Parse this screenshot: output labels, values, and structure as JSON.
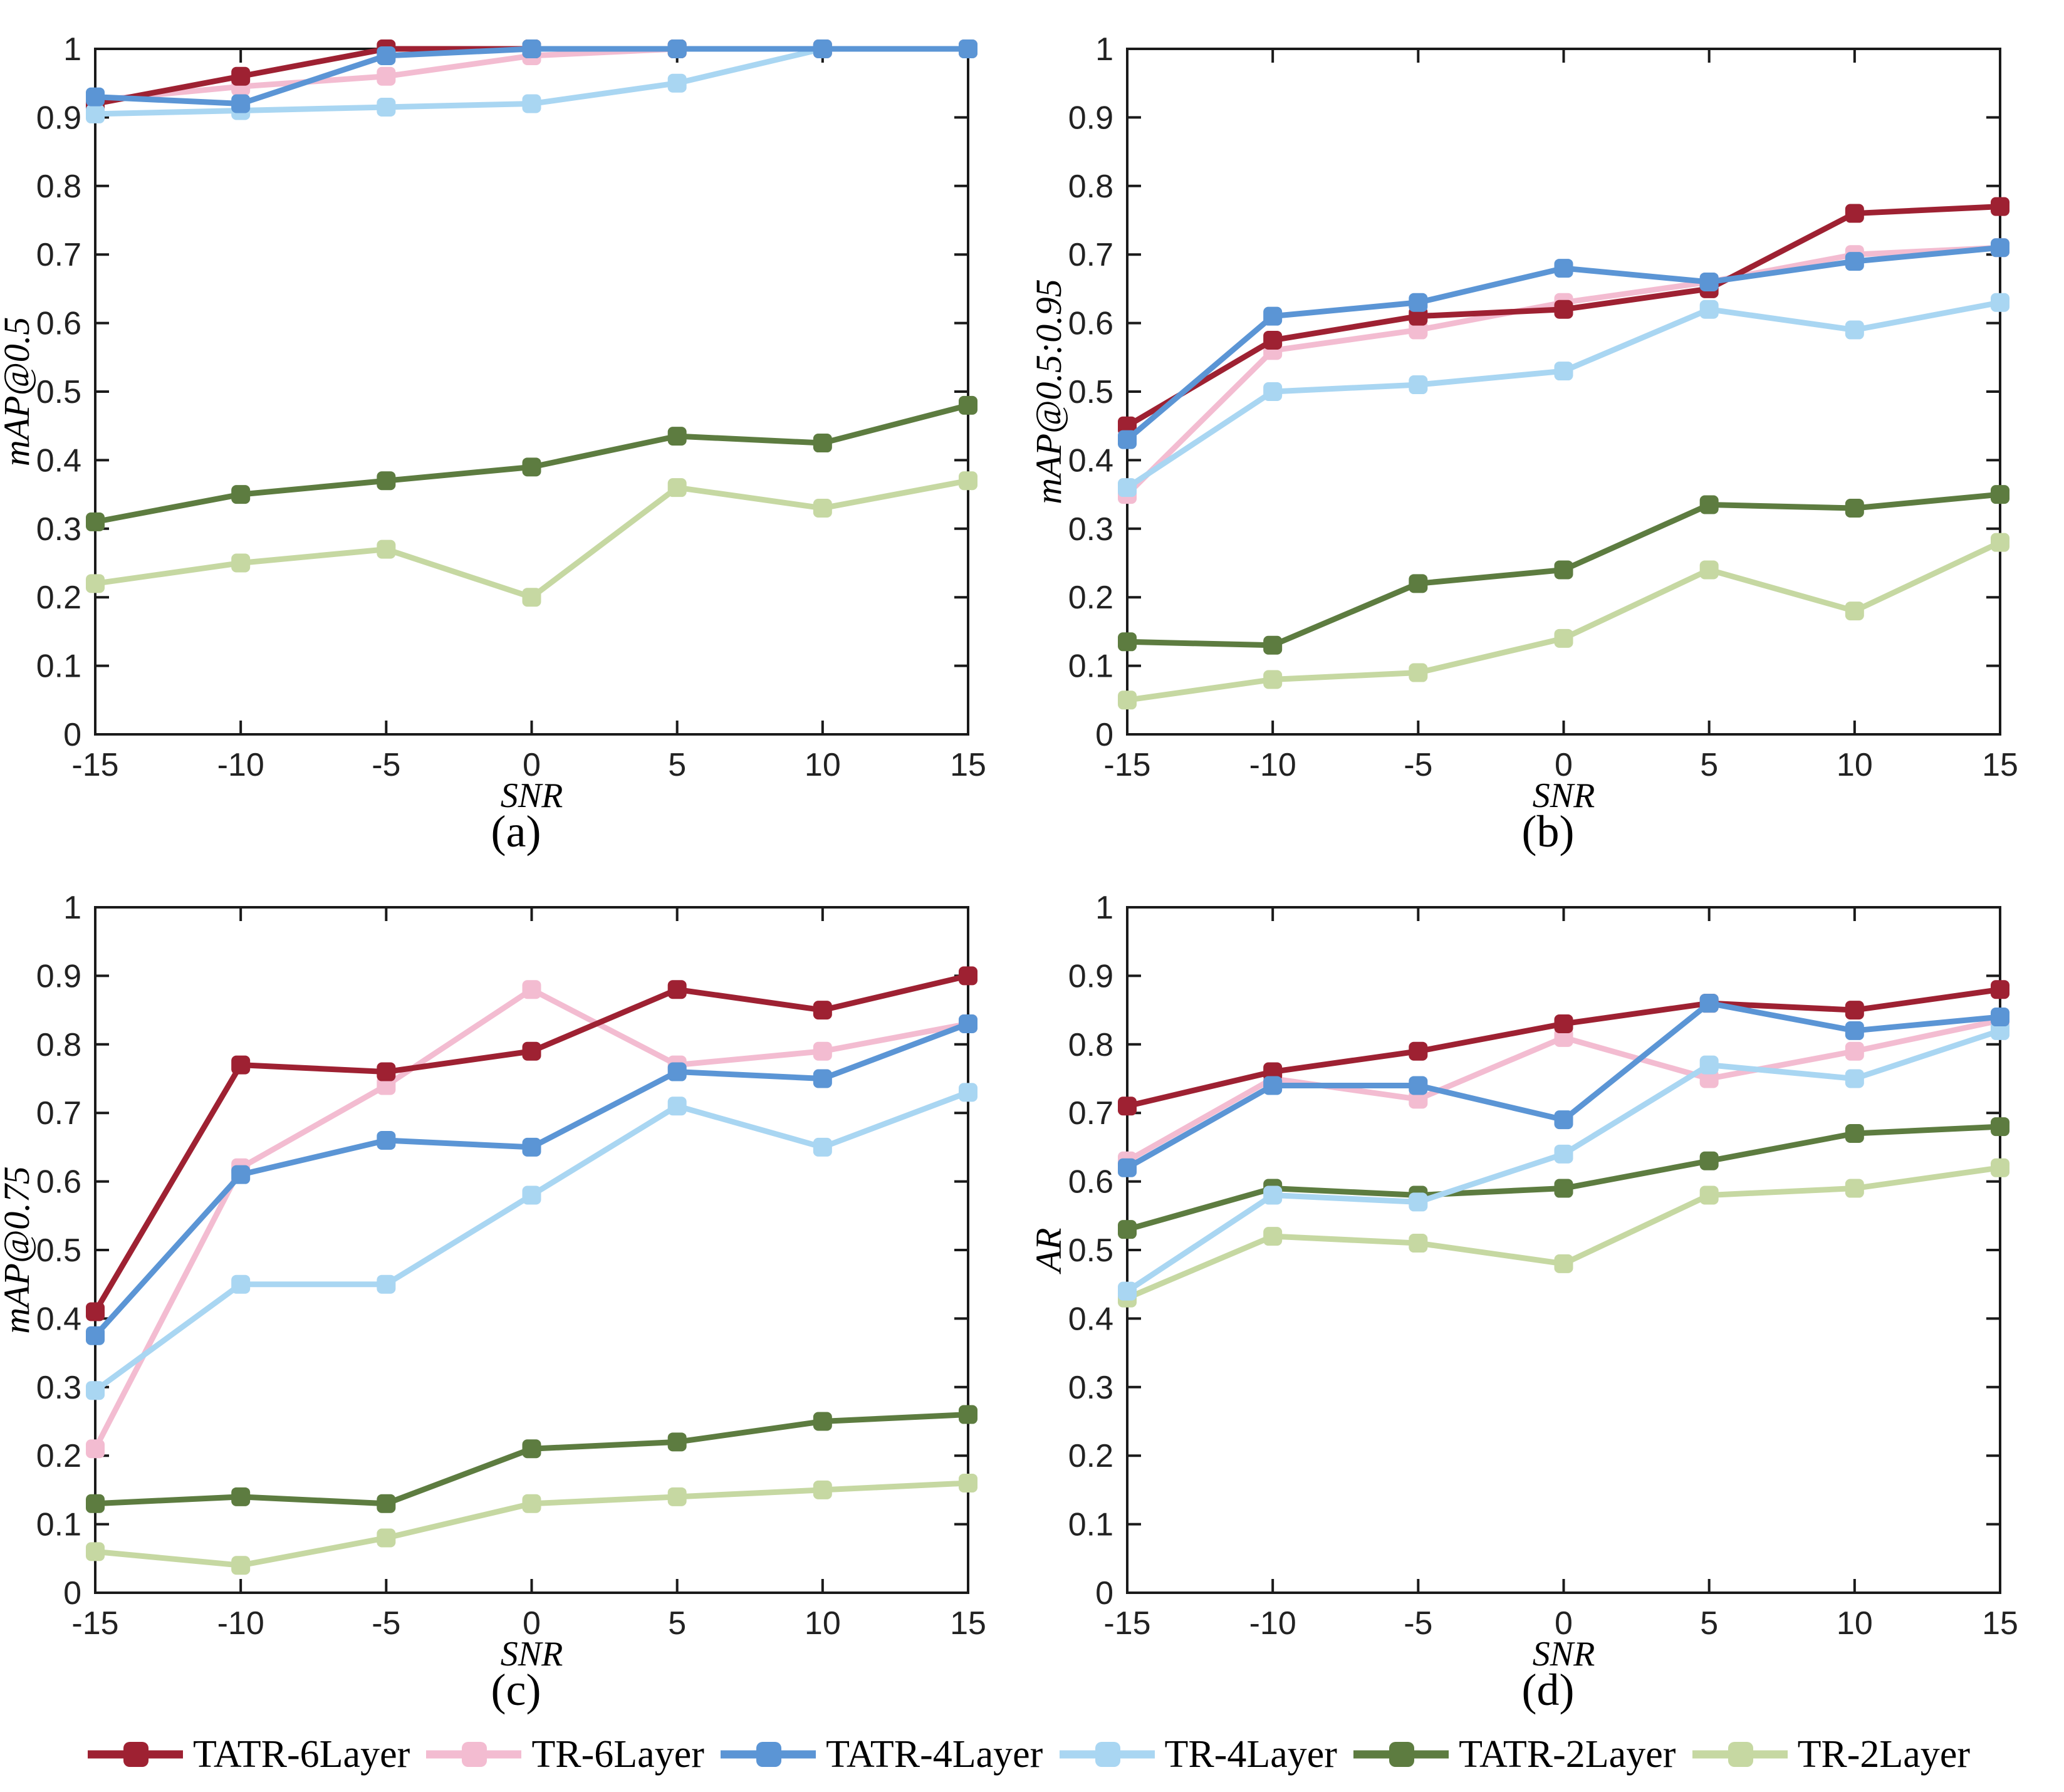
{
  "figure": {
    "background": "#ffffff",
    "axis_color": "#1a1a1a"
  },
  "legend": {
    "items": [
      {
        "label": "TATR-6Layer",
        "color": "#9e2132",
        "marker": "square-icon"
      },
      {
        "label": "TR-6Layer",
        "color": "#f3bcd1",
        "marker": "square-icon"
      },
      {
        "label": "TATR-4Layer",
        "color": "#5b95d5",
        "marker": "square-icon"
      },
      {
        "label": "TR-4Layer",
        "color": "#a9d6f2",
        "marker": "square-icon"
      },
      {
        "label": "TATR-2Layer",
        "color": "#5d7c40",
        "marker": "square-icon"
      },
      {
        "label": "TR-2Layer",
        "color": "#c6d8a2",
        "marker": "square-icon"
      }
    ]
  },
  "chart_data": [
    {
      "type": "line",
      "caption": "(a)",
      "ylabel": "mAP@0.5",
      "xlabel": "SNR",
      "x": [
        -15,
        -10,
        -5,
        0,
        5,
        10,
        15
      ],
      "ylim": [
        0,
        1
      ],
      "yticks": [
        0,
        0.1,
        0.2,
        0.3,
        0.4,
        0.5,
        0.6,
        0.7,
        0.8,
        0.9,
        1
      ],
      "grid": false,
      "series": [
        {
          "name": "TATR-6Layer",
          "color": "#9e2132",
          "values": [
            0.92,
            0.96,
            1.0,
            1.0,
            1.0,
            1.0,
            1.0
          ]
        },
        {
          "name": "TR-6Layer",
          "color": "#f3bcd1",
          "values": [
            0.925,
            0.945,
            0.96,
            0.99,
            1.0,
            1.0,
            1.0
          ]
        },
        {
          "name": "TATR-4Layer",
          "color": "#5b95d5",
          "values": [
            0.93,
            0.92,
            0.99,
            1.0,
            1.0,
            1.0,
            1.0
          ]
        },
        {
          "name": "TR-4Layer",
          "color": "#a9d6f2",
          "values": [
            0.905,
            0.91,
            0.915,
            0.92,
            0.95,
            1.0,
            1.0
          ]
        },
        {
          "name": "TATR-2Layer",
          "color": "#5d7c40",
          "values": [
            0.31,
            0.35,
            0.37,
            0.39,
            0.435,
            0.425,
            0.48
          ]
        },
        {
          "name": "TR-2Layer",
          "color": "#c6d8a2",
          "values": [
            0.22,
            0.25,
            0.27,
            0.2,
            0.36,
            0.33,
            0.37
          ]
        }
      ]
    },
    {
      "type": "line",
      "caption": "(b)",
      "ylabel": "mAP@0.5:0.95",
      "xlabel": "SNR",
      "x": [
        -15,
        -10,
        -5,
        0,
        5,
        10,
        15
      ],
      "ylim": [
        0,
        1
      ],
      "yticks": [
        0,
        0.1,
        0.2,
        0.3,
        0.4,
        0.5,
        0.6,
        0.7,
        0.8,
        0.9,
        1
      ],
      "grid": false,
      "series": [
        {
          "name": "TATR-6Layer",
          "color": "#9e2132",
          "values": [
            0.45,
            0.575,
            0.61,
            0.62,
            0.65,
            0.76,
            0.77
          ]
        },
        {
          "name": "TR-6Layer",
          "color": "#f3bcd1",
          "values": [
            0.35,
            0.56,
            0.59,
            0.63,
            0.66,
            0.7,
            0.71
          ]
        },
        {
          "name": "TATR-4Layer",
          "color": "#5b95d5",
          "values": [
            0.43,
            0.61,
            0.63,
            0.68,
            0.66,
            0.69,
            0.71
          ]
        },
        {
          "name": "TR-4Layer",
          "color": "#a9d6f2",
          "values": [
            0.36,
            0.5,
            0.51,
            0.53,
            0.62,
            0.59,
            0.63
          ]
        },
        {
          "name": "TATR-2Layer",
          "color": "#5d7c40",
          "values": [
            0.135,
            0.13,
            0.22,
            0.24,
            0.335,
            0.33,
            0.35
          ]
        },
        {
          "name": "TR-2Layer",
          "color": "#c6d8a2",
          "values": [
            0.05,
            0.08,
            0.09,
            0.14,
            0.24,
            0.18,
            0.28
          ]
        }
      ]
    },
    {
      "type": "line",
      "caption": "(c)",
      "ylabel": "mAP@0.75",
      "xlabel": "SNR",
      "x": [
        -15,
        -10,
        -5,
        0,
        5,
        10,
        15
      ],
      "ylim": [
        0,
        1
      ],
      "yticks": [
        0,
        0.1,
        0.2,
        0.3,
        0.4,
        0.5,
        0.6,
        0.7,
        0.8,
        0.9,
        1
      ],
      "grid": false,
      "series": [
        {
          "name": "TATR-6Layer",
          "color": "#9e2132",
          "values": [
            0.41,
            0.77,
            0.76,
            0.79,
            0.88,
            0.85,
            0.9
          ]
        },
        {
          "name": "TR-6Layer",
          "color": "#f3bcd1",
          "values": [
            0.21,
            0.62,
            0.74,
            0.88,
            0.77,
            0.79,
            0.83
          ]
        },
        {
          "name": "TATR-4Layer",
          "color": "#5b95d5",
          "values": [
            0.375,
            0.61,
            0.66,
            0.65,
            0.76,
            0.75,
            0.83
          ]
        },
        {
          "name": "TR-4Layer",
          "color": "#a9d6f2",
          "values": [
            0.295,
            0.45,
            0.45,
            0.58,
            0.71,
            0.65,
            0.73
          ]
        },
        {
          "name": "TATR-2Layer",
          "color": "#5d7c40",
          "values": [
            0.13,
            0.14,
            0.13,
            0.21,
            0.22,
            0.25,
            0.26
          ]
        },
        {
          "name": "TR-2Layer",
          "color": "#c6d8a2",
          "values": [
            0.06,
            0.04,
            0.08,
            0.13,
            0.14,
            0.15,
            0.16
          ]
        }
      ]
    },
    {
      "type": "line",
      "caption": "(d)",
      "ylabel": "AR",
      "xlabel": "SNR",
      "x": [
        -15,
        -10,
        -5,
        0,
        5,
        10,
        15
      ],
      "ylim": [
        0,
        1
      ],
      "yticks": [
        0,
        0.1,
        0.2,
        0.3,
        0.4,
        0.5,
        0.6,
        0.7,
        0.8,
        0.9,
        1
      ],
      "grid": false,
      "series": [
        {
          "name": "TATR-6Layer",
          "color": "#9e2132",
          "values": [
            0.71,
            0.76,
            0.79,
            0.83,
            0.86,
            0.85,
            0.88
          ]
        },
        {
          "name": "TR-6Layer",
          "color": "#f3bcd1",
          "values": [
            0.63,
            0.75,
            0.72,
            0.81,
            0.75,
            0.79,
            0.835
          ]
        },
        {
          "name": "TATR-4Layer",
          "color": "#5b95d5",
          "values": [
            0.62,
            0.74,
            0.74,
            0.69,
            0.86,
            0.82,
            0.84
          ]
        },
        {
          "name": "TR-4Layer",
          "color": "#a9d6f2",
          "values": [
            0.44,
            0.58,
            0.57,
            0.64,
            0.77,
            0.75,
            0.82
          ]
        },
        {
          "name": "TATR-2Layer",
          "color": "#5d7c40",
          "values": [
            0.53,
            0.59,
            0.58,
            0.59,
            0.63,
            0.67,
            0.68
          ]
        },
        {
          "name": "TR-2Layer",
          "color": "#c6d8a2",
          "values": [
            0.43,
            0.52,
            0.51,
            0.48,
            0.58,
            0.59,
            0.62
          ]
        }
      ]
    }
  ]
}
